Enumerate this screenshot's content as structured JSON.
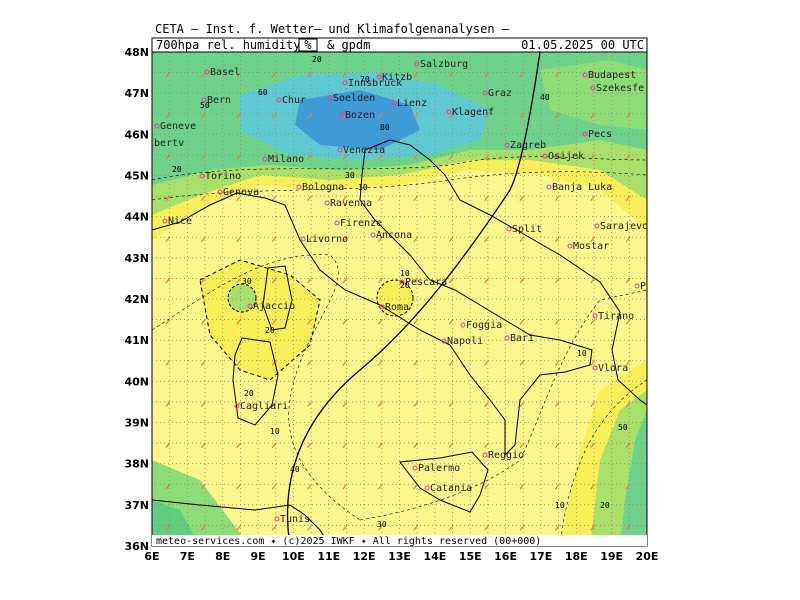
{
  "header": {
    "institute": "CETA — Inst. f. Wetter— und Klimafolgenanalysen —",
    "product": "700hpa_rel._humidity",
    "unit": "%",
    "product2": "&_gpdm",
    "datetime": "01.05.2025 00 UTC",
    "footer": "meteo-services.com ✦ (c)2025 IWKF ✦ All rights reserved (00+000)"
  },
  "lon_labels": [
    "6E",
    "7E",
    "8E",
    "9E",
    "10E",
    "11E",
    "12E",
    "13E",
    "14E",
    "15E",
    "16E",
    "17E",
    "18E",
    "19E",
    "20E"
  ],
  "lat_labels": [
    "48N",
    "47N",
    "46N",
    "45N",
    "44N",
    "43N",
    "42N",
    "41N",
    "40N",
    "39N",
    "38N",
    "37N",
    "36N"
  ],
  "cities": [
    "Basel",
    "Bern",
    "Chur",
    "Geneve",
    "Albertv",
    "Torino",
    "Genova",
    "Nice",
    "Milano",
    "Soelden",
    "Innsbruck",
    "Kitzb",
    "Salzburg",
    "Lienz",
    "Bozen",
    "Venezia",
    "Bologna",
    "Ravenna",
    "Firenze",
    "Ancona",
    "Livorno",
    "Pescara",
    "Roma",
    "Ajaccio",
    "Cagliari",
    "Napoli",
    "Foggia",
    "Bari",
    "Palermo",
    "Catania",
    "Reggio",
    "Tunis",
    "Split",
    "Banja Luka",
    "Sarajevo",
    "Mostar",
    "Podgorica",
    "Tirano",
    "Vlora",
    "Zagreb",
    "Graz",
    "Budapest",
    "Szekesfe",
    "Pecs",
    "Osijek",
    "Klagenf"
  ],
  "contour_labels": [
    "20",
    "50",
    "70",
    "80",
    "60",
    "40",
    "30",
    "10",
    "20",
    "30",
    "20",
    "10",
    "20",
    "10",
    "20",
    "10",
    "20",
    "10",
    "30",
    "40",
    "50"
  ]
}
